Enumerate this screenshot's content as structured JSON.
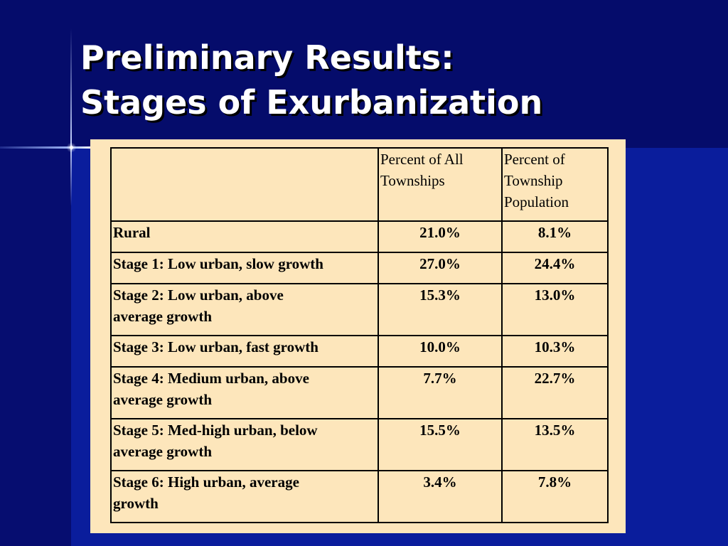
{
  "slide": {
    "title_line1": "Preliminary Results:",
    "title_line2": "Stages of Exurbanization"
  },
  "table": {
    "header": {
      "col1": "",
      "col2_line1": "Percent of All",
      "col2_line2": "Townships",
      "col3_line1": "Percent of",
      "col3_line2": "Township",
      "col3_line3": "Population"
    },
    "rows": [
      {
        "label_line1": "Rural",
        "label_line2": "",
        "pct_townships": "21.0%",
        "pct_population": "8.1%"
      },
      {
        "label_line1": "Stage 1: Low urban, slow growth",
        "label_line2": "",
        "pct_townships": "27.0%",
        "pct_population": "24.4%"
      },
      {
        "label_line1": "Stage 2: Low urban, above",
        "label_line2": "average growth",
        "pct_townships": "15.3%",
        "pct_population": "13.0%"
      },
      {
        "label_line1": "Stage 3: Low urban, fast growth",
        "label_line2": "",
        "pct_townships": "10.0%",
        "pct_population": "10.3%"
      },
      {
        "label_line1": "Stage 4: Medium urban, above",
        "label_line2": "average growth",
        "pct_townships": "7.7%",
        "pct_population": "22.7%"
      },
      {
        "label_line1": "Stage 5: Med-high urban, below",
        "label_line2": "average growth",
        "pct_townships": "15.5%",
        "pct_population": "13.5%"
      },
      {
        "label_line1": "Stage 6: High urban, average",
        "label_line2": "growth",
        "pct_townships": "3.4%",
        "pct_population": "7.8%"
      }
    ]
  }
}
